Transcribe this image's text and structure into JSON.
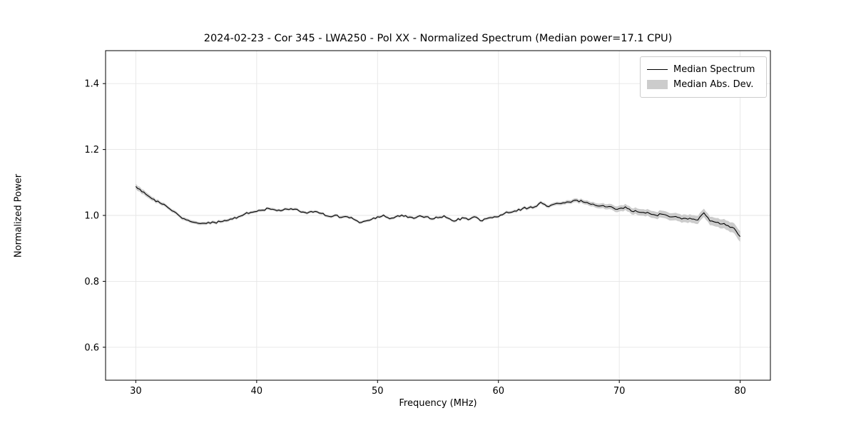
{
  "figure": {
    "background": "#ffffff"
  },
  "chart_data": {
    "type": "line",
    "title": "2024-02-23 - Cor 345 - LWA250 - Pol XX - Normalized Spectrum (Median power=17.1 CPU)",
    "xlabel": "Frequency (MHz)",
    "ylabel": "Normalized Power",
    "xlim": [
      27.5,
      82.5
    ],
    "ylim": [
      0.5,
      1.5
    ],
    "xticks": [
      30,
      40,
      50,
      60,
      70,
      80
    ],
    "yticks": [
      0.6,
      0.8,
      1.0,
      1.2,
      1.4
    ],
    "grid": true,
    "legend": {
      "position": "upper right",
      "entries": [
        {
          "label": "Median Spectrum",
          "type": "line",
          "color": "#000000"
        },
        {
          "label": "Median Abs. Dev.",
          "type": "patch",
          "color": "#cccccc"
        }
      ]
    },
    "colors": {
      "line": "#000000",
      "band": "#cccccc",
      "grid": "#e6e6e6",
      "spine": "#000000"
    },
    "noise_amplitude": 0.0035,
    "series": [
      {
        "name": "Median Spectrum",
        "x": [
          30,
          30.5,
          31,
          31.5,
          32,
          32.5,
          33,
          33.5,
          34,
          34.5,
          35,
          35.5,
          36,
          36.5,
          37,
          37.5,
          38,
          38.5,
          39,
          39.5,
          40,
          40.5,
          41,
          41.5,
          42,
          42.5,
          43,
          43.5,
          44,
          44.5,
          45,
          45.5,
          46,
          46.5,
          47,
          47.5,
          48,
          48.5,
          49,
          49.5,
          50,
          50.5,
          51,
          51.5,
          52,
          52.5,
          53,
          53.5,
          54,
          54.5,
          55,
          55.5,
          56,
          56.5,
          57,
          57.5,
          58,
          58.5,
          59,
          59.5,
          60,
          60.5,
          61,
          61.5,
          62,
          62.5,
          63,
          63.5,
          64,
          64.5,
          65,
          65.5,
          66,
          66.5,
          67,
          67.5,
          68,
          68.5,
          69,
          69.5,
          70,
          70.5,
          71,
          71.5,
          72,
          72.5,
          73,
          73.5,
          74,
          74.5,
          75,
          75.5,
          76,
          76.5,
          77,
          77.5,
          78,
          78.5,
          79,
          79.5,
          80
        ],
        "y": [
          1.088,
          1.072,
          1.06,
          1.049,
          1.038,
          1.029,
          1.014,
          1.002,
          0.99,
          0.982,
          0.978,
          0.976,
          0.979,
          0.979,
          0.981,
          0.984,
          0.989,
          0.996,
          1.004,
          1.009,
          1.012,
          1.016,
          1.021,
          1.017,
          1.014,
          1.019,
          1.018,
          1.014,
          1.009,
          1.012,
          1.011,
          1.006,
          0.997,
          1.001,
          0.994,
          0.996,
          0.989,
          0.978,
          0.983,
          0.988,
          0.996,
          1.001,
          0.99,
          0.996,
          1.001,
          0.994,
          0.991,
          0.999,
          0.996,
          0.989,
          0.993,
          0.999,
          0.989,
          0.984,
          0.993,
          0.987,
          0.996,
          0.984,
          0.99,
          0.993,
          0.996,
          1.006,
          1.009,
          1.013,
          1.021,
          1.023,
          1.026,
          1.04,
          1.028,
          1.033,
          1.036,
          1.038,
          1.04,
          1.046,
          1.041,
          1.036,
          1.031,
          1.029,
          1.026,
          1.023,
          1.021,
          1.026,
          1.013,
          1.011,
          1.009,
          1.006,
          1.001,
          1.004,
          0.999,
          0.996,
          0.993,
          0.991,
          0.989,
          0.986,
          1.008,
          0.983,
          0.979,
          0.974,
          0.969,
          0.961,
          0.936
        ]
      }
    ],
    "band": {
      "name": "Median Abs. Dev.",
      "anchors_x": [
        30,
        32,
        40,
        60,
        65,
        68,
        70,
        72,
        74,
        76,
        78,
        80
      ],
      "anchors_halfwidth": [
        0.008,
        0.005,
        0.004,
        0.004,
        0.005,
        0.007,
        0.009,
        0.01,
        0.011,
        0.012,
        0.013,
        0.016
      ]
    }
  }
}
